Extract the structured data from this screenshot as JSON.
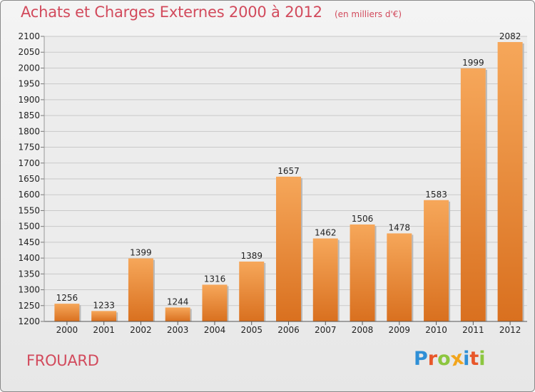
{
  "title": "Achats et Charges Externes 2000 à 2012",
  "subtitle": "(en milliers d'€)",
  "location": "FROUARD",
  "brand": {
    "letters": [
      "P",
      "r",
      "o",
      "x",
      "i",
      "t",
      "i"
    ],
    "colors": [
      "#2f8fd6",
      "#e8572a",
      "#8cc63f",
      "#f2a51c",
      "#2f8fd6",
      "#e8572a",
      "#8cc63f"
    ]
  },
  "colors": {
    "bar_top": "#f6a75a",
    "bar_bottom": "#d9701f",
    "title": "#d24a5c",
    "grid": "#c9c9c9"
  },
  "chart_data": {
    "type": "bar",
    "categories": [
      "2000",
      "2001",
      "2002",
      "2003",
      "2004",
      "2005",
      "2006",
      "2007",
      "2008",
      "2009",
      "2010",
      "2011",
      "2012"
    ],
    "values": [
      1256,
      1233,
      1399,
      1244,
      1316,
      1389,
      1657,
      1462,
      1506,
      1478,
      1583,
      1999,
      2082
    ],
    "ylim": [
      1200,
      2100
    ],
    "ytick_step": 50,
    "yticks": [
      "1200",
      "1250",
      "1300",
      "1350",
      "1400",
      "1450",
      "1500",
      "1550",
      "1600",
      "1650",
      "1700",
      "1750",
      "1800",
      "1850",
      "1900",
      "1950",
      "2000",
      "2050",
      "2100"
    ],
    "grid": true,
    "data_labels": true
  }
}
